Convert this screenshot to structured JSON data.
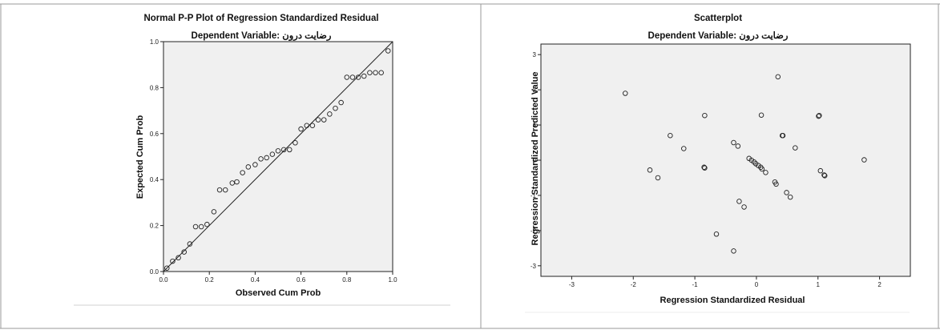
{
  "chart_data": [
    {
      "type": "scatter",
      "title": "Normal P-P Plot of Regression Standardized Residual",
      "subtitle": "Dependent Variable: رضایت درون",
      "xlabel": "Observed Cum Prob",
      "ylabel": "Expected Cum Prob",
      "xlim": [
        0,
        1
      ],
      "ylim": [
        0,
        1
      ],
      "xticks": [
        "0.0",
        "0.2",
        "0.4",
        "0.6",
        "0.8",
        "1.0"
      ],
      "yticks": [
        "0.0",
        "0.2",
        "0.4",
        "0.6",
        "0.8",
        "1.0"
      ],
      "reference_line": [
        [
          0,
          0
        ],
        [
          1,
          1
        ]
      ],
      "grid": false,
      "points": [
        [
          0.015,
          0.015
        ],
        [
          0.04,
          0.045
        ],
        [
          0.065,
          0.06
        ],
        [
          0.09,
          0.085
        ],
        [
          0.115,
          0.12
        ],
        [
          0.14,
          0.195
        ],
        [
          0.165,
          0.195
        ],
        [
          0.19,
          0.205
        ],
        [
          0.22,
          0.26
        ],
        [
          0.245,
          0.355
        ],
        [
          0.27,
          0.355
        ],
        [
          0.3,
          0.385
        ],
        [
          0.32,
          0.39
        ],
        [
          0.345,
          0.43
        ],
        [
          0.37,
          0.455
        ],
        [
          0.4,
          0.465
        ],
        [
          0.425,
          0.49
        ],
        [
          0.45,
          0.495
        ],
        [
          0.475,
          0.51
        ],
        [
          0.5,
          0.525
        ],
        [
          0.525,
          0.53
        ],
        [
          0.55,
          0.53
        ],
        [
          0.575,
          0.56
        ],
        [
          0.6,
          0.62
        ],
        [
          0.625,
          0.635
        ],
        [
          0.65,
          0.635
        ],
        [
          0.675,
          0.66
        ],
        [
          0.7,
          0.66
        ],
        [
          0.725,
          0.685
        ],
        [
          0.75,
          0.71
        ],
        [
          0.775,
          0.735
        ],
        [
          0.8,
          0.845
        ],
        [
          0.825,
          0.845
        ],
        [
          0.85,
          0.845
        ],
        [
          0.875,
          0.85
        ],
        [
          0.9,
          0.865
        ],
        [
          0.925,
          0.865
        ],
        [
          0.95,
          0.865
        ],
        [
          0.98,
          0.96
        ]
      ]
    },
    {
      "type": "scatter",
      "title": "Scatterplot",
      "subtitle": "Dependent Variable: رضایت درون",
      "xlabel": "Regression Standardized Residual",
      "ylabel": "Regression Standardized Predicted Value",
      "xlim": [
        -3.5,
        2.5
      ],
      "ylim": [
        -3.3,
        3.3
      ],
      "xticks": [
        "-3",
        "-2",
        "-1",
        "0",
        "1",
        "2"
      ],
      "yticks": [
        "-3",
        "-2",
        "-1",
        "0",
        "1",
        "2",
        "3"
      ],
      "grid": false,
      "points": [
        [
          -2.13,
          1.9
        ],
        [
          -1.73,
          -0.28
        ],
        [
          -1.6,
          -0.5
        ],
        [
          -1.4,
          0.7
        ],
        [
          -1.18,
          0.33
        ],
        [
          -0.85,
          -0.2
        ],
        [
          -0.84,
          1.27
        ],
        [
          -0.84,
          -0.22
        ],
        [
          -0.65,
          -2.1
        ],
        [
          -0.37,
          0.5
        ],
        [
          -0.37,
          -2.58
        ],
        [
          -0.3,
          0.4
        ],
        [
          -0.28,
          -1.17
        ],
        [
          -0.2,
          -1.33
        ],
        [
          -0.12,
          0.05
        ],
        [
          -0.08,
          0.0
        ],
        [
          -0.04,
          -0.05
        ],
        [
          -0.01,
          -0.1
        ],
        [
          0.03,
          -0.15
        ],
        [
          0.07,
          -0.2
        ],
        [
          0.09,
          -0.25
        ],
        [
          0.08,
          1.28
        ],
        [
          0.15,
          -0.35
        ],
        [
          0.3,
          -0.62
        ],
        [
          0.32,
          -0.68
        ],
        [
          0.35,
          2.37
        ],
        [
          0.42,
          0.7
        ],
        [
          0.43,
          0.7
        ],
        [
          0.49,
          -0.92
        ],
        [
          0.55,
          -1.05
        ],
        [
          0.63,
          0.35
        ],
        [
          1.01,
          1.25
        ],
        [
          1.02,
          1.27
        ],
        [
          1.04,
          -0.3
        ],
        [
          1.1,
          -0.42
        ],
        [
          1.11,
          -0.44
        ],
        [
          1.75,
          0.01
        ]
      ]
    }
  ]
}
